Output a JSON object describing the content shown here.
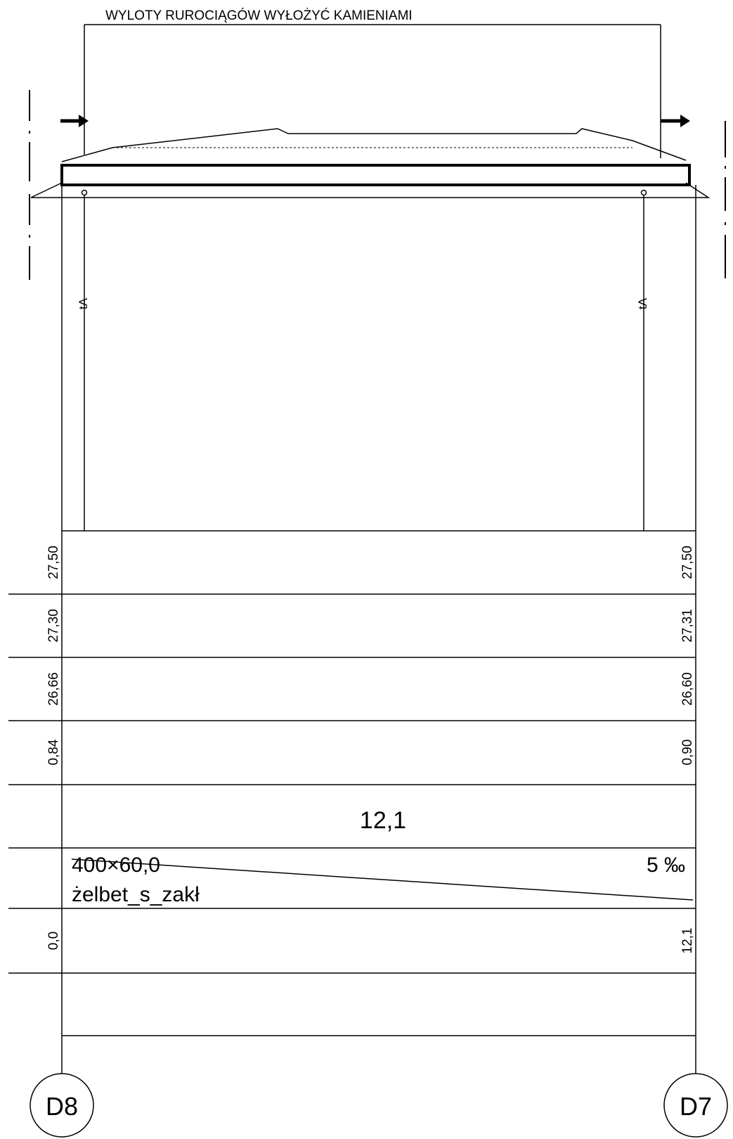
{
  "drawing": {
    "note": "WYLOTY RUROCIĄGÓW WYŁOŻYĆ KAMIENIAMI",
    "section_marker_left": "tA",
    "section_marker_right": "tA"
  },
  "table": {
    "rows": [
      {
        "left": "27,50",
        "right": "27,50"
      },
      {
        "left": "27,30",
        "right": "27,31"
      },
      {
        "left": "26,66",
        "right": "26,60"
      },
      {
        "left": "0,84",
        "right": "0,90"
      }
    ],
    "length": "12,1",
    "pipe_size": "400×60,0",
    "pipe_material": "żelbet_s_zakł",
    "slope": "5 ‰",
    "station_left": "0,0",
    "station_right": "12,1"
  },
  "nodes": {
    "left": "D8",
    "right": "D7"
  }
}
